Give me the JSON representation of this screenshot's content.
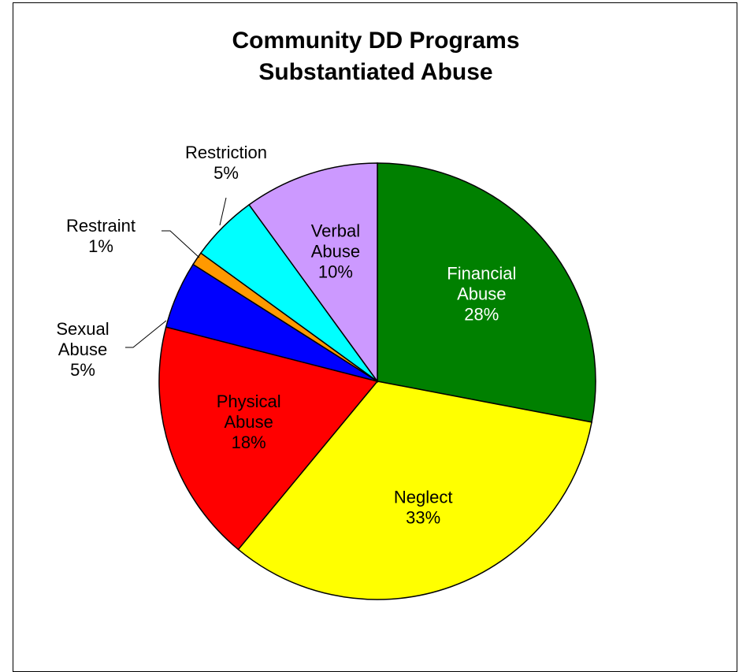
{
  "chart_data": {
    "type": "pie",
    "title": [
      "Community DD Programs",
      "Substantiated Abuse"
    ],
    "start_angle_deg": 0,
    "direction": "clockwise",
    "slices": [
      {
        "label": [
          "Financial",
          "Abuse"
        ],
        "value": 28,
        "pct_label": "28%",
        "color": "#008000",
        "label_color": "#ffffff",
        "label_placement": "inside"
      },
      {
        "label": [
          "Neglect"
        ],
        "value": 33,
        "pct_label": "33%",
        "color": "#ffff00",
        "label_color": "#000000",
        "label_placement": "inside"
      },
      {
        "label": [
          "Physical",
          "Abuse"
        ],
        "value": 18,
        "pct_label": "18%",
        "color": "#ff0000",
        "label_color": "#000000",
        "label_placement": "inside"
      },
      {
        "label": [
          "Sexual",
          "Abuse"
        ],
        "value": 5,
        "pct_label": "5%",
        "color": "#0000ff",
        "label_color": "#000000",
        "label_placement": "outside-left"
      },
      {
        "label": [
          "Restraint"
        ],
        "value": 1,
        "pct_label": "1%",
        "color": "#ff9900",
        "label_color": "#000000",
        "label_placement": "outside-left"
      },
      {
        "label": [
          "Restriction"
        ],
        "value": 5,
        "pct_label": "5%",
        "color": "#00ffff",
        "label_color": "#000000",
        "label_placement": "outside-top"
      },
      {
        "label": [
          "Verbal",
          "Abuse"
        ],
        "value": 10,
        "pct_label": "10%",
        "color": "#cc99ff",
        "label_color": "#000000",
        "label_placement": "inside"
      }
    ]
  }
}
